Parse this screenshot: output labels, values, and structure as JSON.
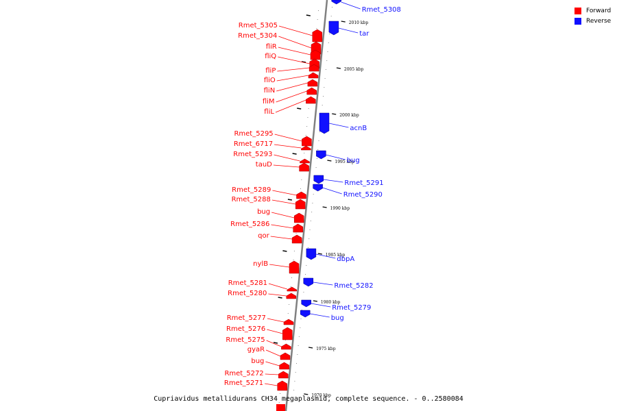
{
  "colors": {
    "forward": "#ff0000",
    "reverse": "#1010ff",
    "backbone": "#808080"
  },
  "legend": {
    "forward": "Forward",
    "reverse": "Reverse"
  },
  "caption": "Cupriavidus metallidurans CH34 megaplasmid, complete sequence. - 0..2580084",
  "ticks": [
    {
      "kbp": 2010,
      "label": "2010 kbp"
    },
    {
      "kbp": 2005,
      "label": "2005 kbp"
    },
    {
      "kbp": 2000,
      "label": "2000 kbp"
    },
    {
      "kbp": 1995,
      "label": "1995 kbp"
    },
    {
      "kbp": 1990,
      "label": "1990 kbp"
    },
    {
      "kbp": 1985,
      "label": "1985 kbp"
    },
    {
      "kbp": 1980,
      "label": "1980 kbp"
    },
    {
      "kbp": 1975,
      "label": "1975 kbp"
    },
    {
      "kbp": 1970,
      "label": "1970 kbp"
    }
  ],
  "forward_genes": [
    "Rmet_5305",
    "Rmet_5304",
    "fliR",
    "fliQ",
    "fliP",
    "fliO",
    "fliN",
    "fliM",
    "fliL",
    "Rmet_5295",
    "Rmet_6717",
    "Rmet_5293",
    "tauD",
    "Rmet_5289",
    "Rmet_5288",
    "bug",
    "Rmet_5286",
    "qor",
    "nylB",
    "Rmet_5281",
    "Rmet_5280",
    "Rmet_5277",
    "Rmet_5276",
    "Rmet_5275",
    "gyaR",
    "bug",
    "Rmet_5272",
    "Rmet_5271"
  ],
  "reverse_genes": [
    "Rmet_5308",
    "tar",
    "acnB",
    "bug",
    "Rmet_5291",
    "Rmet_5290",
    "dbpA",
    "Rmet_5282",
    "Rmet_5279",
    "bug"
  ]
}
